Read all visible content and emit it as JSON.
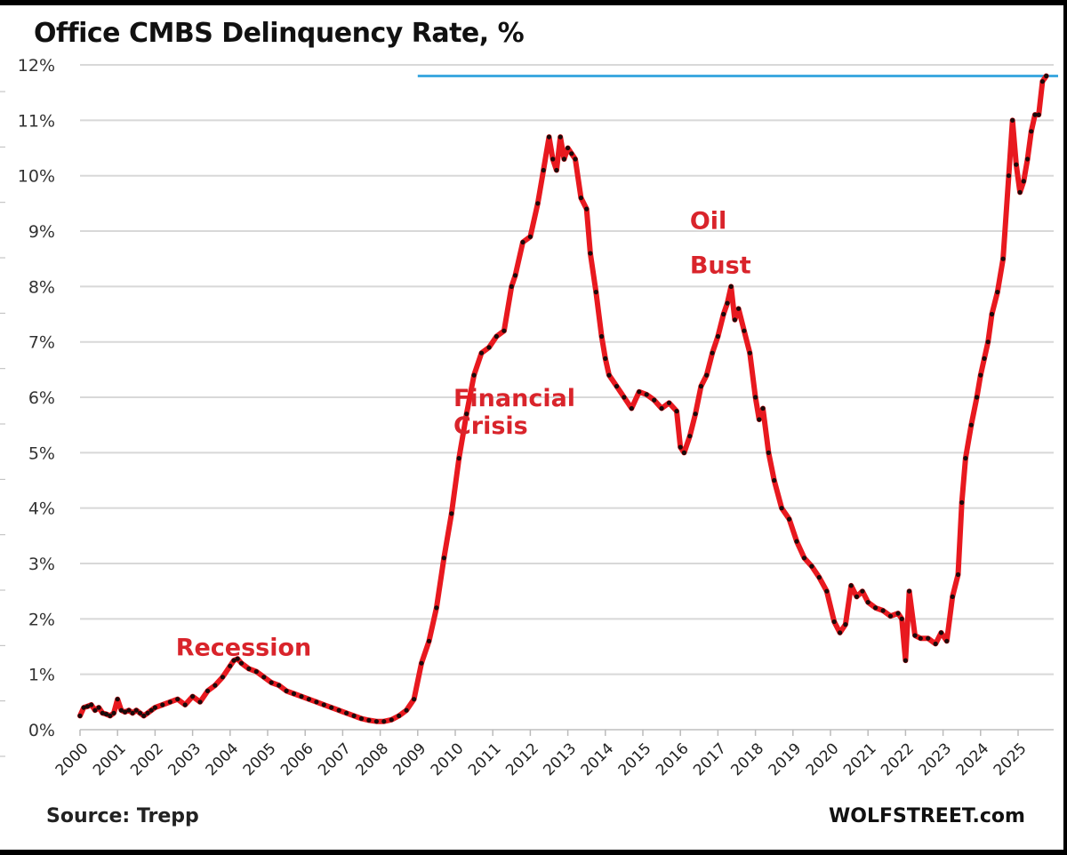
{
  "chart_data": {
    "type": "line",
    "title": "Office CMBS Delinquency Rate, %",
    "xlabel": "",
    "ylabel": "",
    "source": "Source: Trepp",
    "brand": "WOLFSTREET.com",
    "ylim": [
      0,
      12
    ],
    "xlim": [
      2000,
      2025.9
    ],
    "grid": true,
    "legend": "none",
    "y_ticks": [
      "0%",
      "1%",
      "2%",
      "3%",
      "4%",
      "5%",
      "6%",
      "7%",
      "8%",
      "9%",
      "10%",
      "11%",
      "12%"
    ],
    "y_tick_values": [
      0,
      1,
      2,
      3,
      4,
      5,
      6,
      7,
      8,
      9,
      10,
      11,
      12
    ],
    "x_ticks": [
      "2000",
      "2001",
      "2002",
      "2003",
      "2004",
      "2005",
      "2006",
      "2007",
      "2008",
      "2009",
      "2010",
      "2011",
      "2012",
      "2013",
      "2014",
      "2015",
      "2016",
      "2017",
      "2018",
      "2019",
      "2020",
      "2021",
      "2022",
      "2023",
      "2024",
      "2025"
    ],
    "colors": {
      "line": "#e8191f",
      "markers": "#1a0a0a",
      "reference_line": "#3fa9e0",
      "annotation": "#d9242b"
    },
    "reference_line": {
      "value": 11.8,
      "x_start": 2009.0,
      "label": ""
    },
    "annotations": [
      {
        "text": "Recession",
        "x": 2003.5,
        "y": 1.5
      },
      {
        "text": "Financial",
        "x": 2010.9,
        "y": 6.0
      },
      {
        "text": "Crisis",
        "x": 2010.9,
        "y": 5.5
      },
      {
        "text": "Oil",
        "x": 2017.2,
        "y": 9.2
      },
      {
        "text": "Bust",
        "x": 2017.2,
        "y": 8.4
      }
    ],
    "series": [
      {
        "name": "Office CMBS Delinquency Rate",
        "x": [
          2000.0,
          2000.1,
          2000.2,
          2000.3,
          2000.4,
          2000.5,
          2000.6,
          2000.7,
          2000.8,
          2000.9,
          2001.0,
          2001.1,
          2001.2,
          2001.3,
          2001.4,
          2001.5,
          2001.6,
          2001.7,
          2001.8,
          2001.9,
          2002.0,
          2002.2,
          2002.4,
          2002.6,
          2002.8,
          2003.0,
          2003.2,
          2003.4,
          2003.6,
          2003.8,
          2004.0,
          2004.1,
          2004.2,
          2004.3,
          2004.5,
          2004.7,
          2004.9,
          2005.1,
          2005.3,
          2005.5,
          2005.7,
          2005.9,
          2006.1,
          2006.3,
          2006.5,
          2006.7,
          2006.9,
          2007.1,
          2007.3,
          2007.5,
          2007.7,
          2007.9,
          2008.1,
          2008.3,
          2008.5,
          2008.7,
          2008.9,
          2009.1,
          2009.3,
          2009.5,
          2009.7,
          2009.9,
          2010.1,
          2010.3,
          2010.5,
          2010.7,
          2010.9,
          2011.1,
          2011.3,
          2011.5,
          2011.6,
          2011.8,
          2012.0,
          2012.2,
          2012.35,
          2012.5,
          2012.6,
          2012.7,
          2012.8,
          2012.9,
          2013.0,
          2013.1,
          2013.2,
          2013.35,
          2013.5,
          2013.6,
          2013.75,
          2013.9,
          2014.0,
          2014.1,
          2014.3,
          2014.5,
          2014.7,
          2014.9,
          2015.1,
          2015.3,
          2015.5,
          2015.7,
          2015.9,
          2016.0,
          2016.1,
          2016.25,
          2016.4,
          2016.55,
          2016.7,
          2016.85,
          2017.0,
          2017.15,
          2017.25,
          2017.35,
          2017.45,
          2017.55,
          2017.7,
          2017.85,
          2018.0,
          2018.1,
          2018.2,
          2018.35,
          2018.5,
          2018.7,
          2018.9,
          2019.1,
          2019.3,
          2019.5,
          2019.7,
          2019.9,
          2020.1,
          2020.25,
          2020.4,
          2020.55,
          2020.7,
          2020.85,
          2021.0,
          2021.2,
          2021.4,
          2021.6,
          2021.8,
          2021.9,
          2022.0,
          2022.1,
          2022.25,
          2022.4,
          2022.6,
          2022.8,
          2022.95,
          2023.1,
          2023.25,
          2023.4,
          2023.5,
          2023.6,
          2023.75,
          2023.9,
          2024.0,
          2024.1,
          2024.2,
          2024.3,
          2024.45,
          2024.6,
          2024.75,
          2024.85,
          2024.95,
          2025.05,
          2025.15,
          2025.25,
          2025.35,
          2025.45,
          2025.55,
          2025.65,
          2025.75
        ],
        "values": [
          0.25,
          0.4,
          0.42,
          0.45,
          0.35,
          0.4,
          0.3,
          0.28,
          0.25,
          0.3,
          0.55,
          0.35,
          0.32,
          0.35,
          0.3,
          0.35,
          0.3,
          0.25,
          0.3,
          0.35,
          0.4,
          0.45,
          0.5,
          0.55,
          0.45,
          0.6,
          0.5,
          0.7,
          0.8,
          0.95,
          1.15,
          1.25,
          1.28,
          1.2,
          1.1,
          1.05,
          0.95,
          0.85,
          0.8,
          0.7,
          0.65,
          0.6,
          0.55,
          0.5,
          0.45,
          0.4,
          0.35,
          0.3,
          0.25,
          0.2,
          0.17,
          0.15,
          0.15,
          0.18,
          0.25,
          0.35,
          0.55,
          1.2,
          1.6,
          2.2,
          3.1,
          3.9,
          4.9,
          5.7,
          6.4,
          6.8,
          6.9,
          7.1,
          7.2,
          8.0,
          8.2,
          8.8,
          8.9,
          9.5,
          10.1,
          10.7,
          10.3,
          10.1,
          10.7,
          10.3,
          10.5,
          10.4,
          10.3,
          9.6,
          9.4,
          8.6,
          7.9,
          7.1,
          6.7,
          6.4,
          6.2,
          6.0,
          5.8,
          6.1,
          6.05,
          5.95,
          5.8,
          5.9,
          5.75,
          5.1,
          5.0,
          5.3,
          5.7,
          6.2,
          6.4,
          6.8,
          7.1,
          7.5,
          7.7,
          8.0,
          7.4,
          7.6,
          7.2,
          6.8,
          6.0,
          5.6,
          5.8,
          5.0,
          4.5,
          4.0,
          3.8,
          3.4,
          3.1,
          2.95,
          2.75,
          2.5,
          1.95,
          1.75,
          1.9,
          2.6,
          2.4,
          2.5,
          2.3,
          2.2,
          2.15,
          2.05,
          2.1,
          2.0,
          1.25,
          2.5,
          1.7,
          1.65,
          1.65,
          1.55,
          1.75,
          1.6,
          2.4,
          2.8,
          4.1,
          4.9,
          5.5,
          6.0,
          6.4,
          6.7,
          7.0,
          7.5,
          7.9,
          8.5,
          10.0,
          11.0,
          10.2,
          9.7,
          9.9,
          10.3,
          10.8,
          11.1,
          11.1,
          11.7,
          11.8
        ]
      }
    ]
  }
}
